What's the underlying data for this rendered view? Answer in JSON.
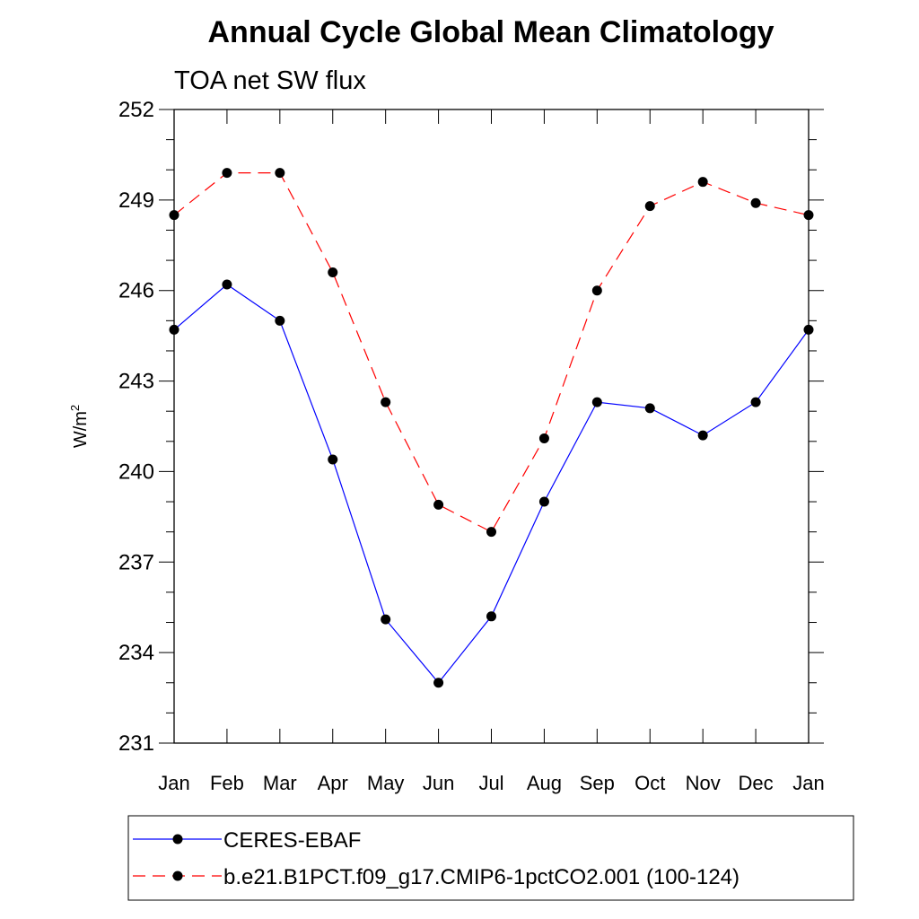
{
  "chart_data": {
    "type": "line",
    "title": "Annual Cycle Global Mean Climatology",
    "subtitle": "TOA net SW flux",
    "xlabel": "",
    "ylabel": "W/m",
    "ylabel_superscript": "2",
    "categories": [
      "Jan",
      "Feb",
      "Mar",
      "Apr",
      "May",
      "Jun",
      "Jul",
      "Aug",
      "Sep",
      "Oct",
      "Nov",
      "Dec",
      "Jan"
    ],
    "ylim": [
      231,
      252
    ],
    "yticks": [
      231,
      234,
      237,
      240,
      243,
      246,
      249,
      252
    ],
    "legend_position": "bottom",
    "series": [
      {
        "name": "CERES-EBAF",
        "color": "#0000ff",
        "line_style": "solid",
        "marker": "filled-circle",
        "values": [
          244.7,
          246.2,
          245.0,
          240.4,
          235.1,
          233.0,
          235.2,
          239.0,
          242.3,
          242.1,
          241.2,
          242.3,
          244.7
        ]
      },
      {
        "name": "b.e21.B1PCT.f09_g17.CMIP6-1pctCO2.001 (100-124)",
        "color": "#ff0000",
        "line_style": "dashed",
        "marker": "filled-circle",
        "values": [
          248.5,
          249.9,
          249.9,
          246.6,
          242.3,
          238.9,
          238.0,
          241.1,
          246.0,
          248.8,
          249.6,
          248.9,
          248.5
        ]
      }
    ]
  }
}
